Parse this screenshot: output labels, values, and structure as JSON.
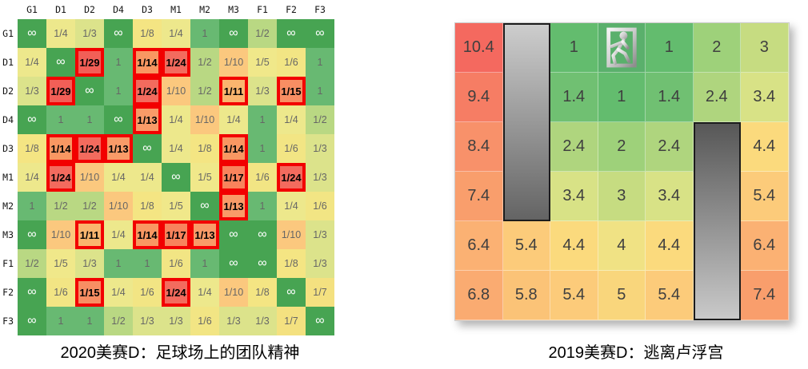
{
  "page": {
    "background": "#ffffff"
  },
  "chart_data": [
    {
      "type": "heatmap",
      "title": "2020美赛D：足球场上的团队精神",
      "columns": [
        "G1",
        "D1",
        "D2",
        "D4",
        "D3",
        "M1",
        "M2",
        "M3",
        "F1",
        "F2",
        "F3"
      ],
      "rows": [
        "G1",
        "D1",
        "D2",
        "D4",
        "D3",
        "M1",
        "M2",
        "M3",
        "F1",
        "F2",
        "F3"
      ],
      "values": [
        [
          "∞",
          "1/4",
          "1/3",
          "∞",
          "1/8",
          "1/4",
          "1",
          "∞",
          "1/2",
          "∞",
          "∞"
        ],
        [
          "1/4",
          "∞",
          "1/29",
          "1",
          "1/14",
          "1/24",
          "1/2",
          "1/10",
          "1/5",
          "1/6",
          "1"
        ],
        [
          "1/3",
          "1/29",
          "∞",
          "1",
          "1/24",
          "1/10",
          "1/2",
          "1/11",
          "1/3",
          "1/15",
          "1"
        ],
        [
          "∞",
          "1",
          "1",
          "∞",
          "1/13",
          "1/4",
          "1/10",
          "1/4",
          "1",
          "1/4",
          "1/2"
        ],
        [
          "1/8",
          "1/14",
          "1/24",
          "1/13",
          "∞",
          "1/4",
          "1/8",
          "1/14",
          "1",
          "1/6",
          "1/3"
        ],
        [
          "1/4",
          "1/24",
          "1/10",
          "1/4",
          "1/4",
          "∞",
          "1/5",
          "1/17",
          "1/6",
          "1/24",
          "1/3"
        ],
        [
          "1",
          "1/2",
          "1/2",
          "1/10",
          "1/8",
          "1/5",
          "∞",
          "1/13",
          "1",
          "1/4",
          "1/6"
        ],
        [
          "∞",
          "1/10",
          "1/11",
          "1/4",
          "1/14",
          "1/17",
          "1/13",
          "∞",
          "∞",
          "1/10",
          "1/3"
        ],
        [
          "1/2",
          "1/5",
          "1/3",
          "1",
          "1",
          "1/6",
          "1",
          "∞",
          "∞",
          "1/8",
          "1/3"
        ],
        [
          "∞",
          "1/6",
          "1/15",
          "1/4",
          "1/6",
          "1/24",
          "1/4",
          "1/10",
          "1/8",
          "∞",
          "1/7"
        ],
        [
          "∞",
          "1",
          "1",
          "1/2",
          "1/3",
          "1/3",
          "1/6",
          "1/3",
          "1/3",
          "1/7",
          "∞"
        ]
      ],
      "highlighted_cells": [
        [
          1,
          2
        ],
        [
          1,
          4
        ],
        [
          1,
          5
        ],
        [
          2,
          1
        ],
        [
          2,
          4
        ],
        [
          2,
          7
        ],
        [
          2,
          9
        ],
        [
          3,
          4
        ],
        [
          4,
          1
        ],
        [
          4,
          2
        ],
        [
          4,
          3
        ],
        [
          4,
          7
        ],
        [
          5,
          1
        ],
        [
          5,
          7
        ],
        [
          5,
          9
        ],
        [
          6,
          7
        ],
        [
          7,
          2
        ],
        [
          7,
          4
        ],
        [
          7,
          5
        ],
        [
          7,
          6
        ],
        [
          9,
          2
        ],
        [
          9,
          5
        ]
      ],
      "highlight_border_color": "#F20000",
      "value_colors": {
        "∞": "#47A452",
        "1": "#68B972",
        "1/2": "#B9D883",
        "1/3": "#DCE38B",
        "1/4": "#EDE88C",
        "1/5": "#F0E88A",
        "1/6": "#F2E584",
        "1/7": "#F4E180",
        "1/8": "#F4E583",
        "1/10": "#FBC87E",
        "1/11": "#FAB56E",
        "1/13": "#F99B68",
        "1/14": "#F99762",
        "1/15": "#F88E63",
        "1/17": "#F8835C",
        "1/24": "#F36B5E",
        "1/29": "#F25F57"
      },
      "legend": "cells show passing-probability fractions; red-boxed bold cells are highlighted key links; ∞ on white-text green cells"
    },
    {
      "type": "heatmap",
      "title": "2019美赛D：逃离卢浮宫",
      "grid": [
        [
          "10.4",
          "wall",
          "1",
          "exit",
          "1",
          "2",
          "3"
        ],
        [
          "9.4",
          "wall",
          "1.4",
          "1",
          "1.4",
          "2.4",
          "3.4"
        ],
        [
          "8.4",
          "wall",
          "2.4",
          "2",
          "2.4",
          "wall",
          "4.4"
        ],
        [
          "7.4",
          "wall",
          "3.4",
          "3",
          "3.4",
          "wall",
          "5.4"
        ],
        [
          "6.4",
          "5.4",
          "4.4",
          "4",
          "4.4",
          "wall",
          "6.4"
        ],
        [
          "6.8",
          "5.8",
          "5.4",
          "5",
          "5.4",
          "wall",
          "7.4"
        ]
      ],
      "walls": [
        {
          "name": "wall-left",
          "col": 1,
          "row": 0,
          "row_span": 4,
          "gradient_top": "#CDCDCD",
          "gradient_bottom": "#646464"
        },
        {
          "name": "wall-right",
          "col": 5,
          "row": 2,
          "row_span": 4,
          "gradient_top": "#575757",
          "gradient_bottom": "#C9C9C9"
        }
      ],
      "exit": {
        "row": 0,
        "col": 3,
        "icon": "exit-door-running-man",
        "background": "#5AB06C"
      },
      "value_colors": {
        "1": "#63BC6E",
        "1.4": "#70C072",
        "2": "#9ED17A",
        "2.4": "#AFD57E",
        "3": "#C6DC81",
        "3.4": "#D8E286",
        "4": "#F0E284",
        "4.4": "#FBDA7D",
        "5": "#F9D67C",
        "5.4": "#FCCB7A",
        "5.8": "#FBC377",
        "6.4": "#FBB173",
        "6.8": "#FAAB71",
        "7.4": "#F99E6C",
        "8.4": "#F8916A",
        "9.4": "#F67D64",
        "10.4": "#F4695F"
      },
      "text_color": "#3f3f3f",
      "legend": "numbers = distance/steps to exit; gray blocks are walls; door icon marks the exit"
    }
  ]
}
